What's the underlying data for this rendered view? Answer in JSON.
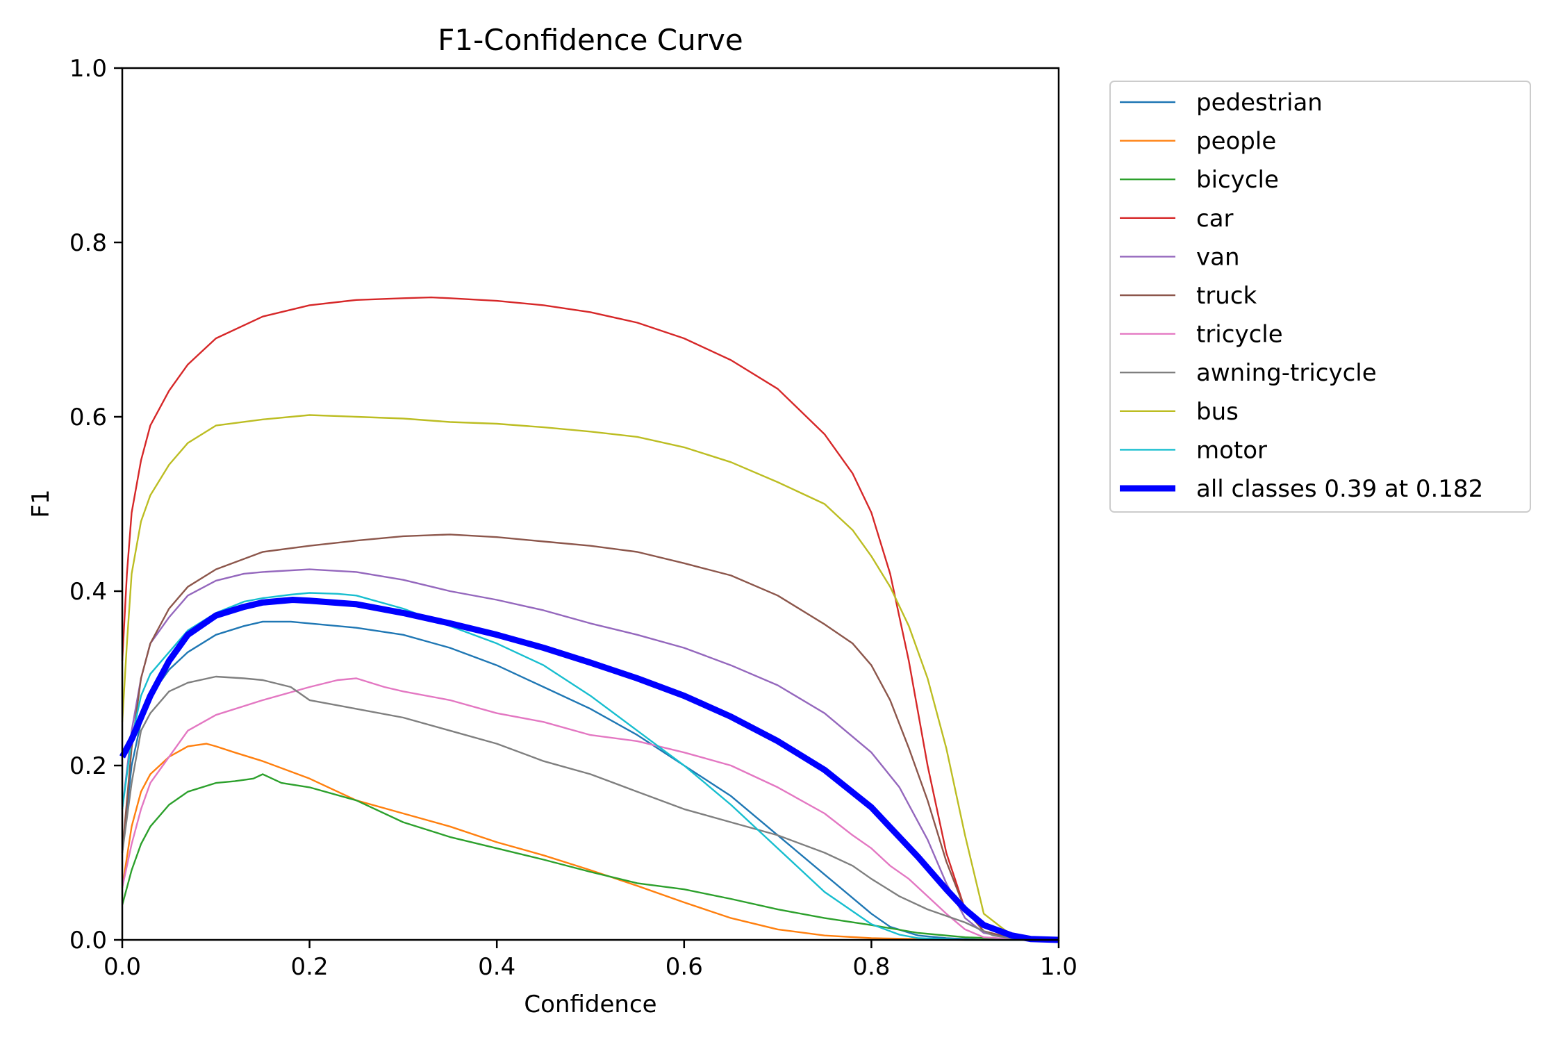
{
  "chart_data": {
    "type": "line",
    "title": "F1-Confidence Curve",
    "xlabel": "Confidence",
    "ylabel": "F1",
    "xlim": [
      0,
      1
    ],
    "ylim": [
      0,
      1
    ],
    "xticks": [
      "0.0",
      "0.2",
      "0.4",
      "0.6",
      "0.8",
      "1.0"
    ],
    "yticks": [
      "0.0",
      "0.2",
      "0.4",
      "0.6",
      "0.8",
      "1.0"
    ],
    "grid": false,
    "legend_position": "outside-upper-right",
    "series": [
      {
        "name": "pedestrian",
        "color": "#1f77b4",
        "x": [
          0,
          0.01,
          0.02,
          0.03,
          0.05,
          0.07,
          0.1,
          0.13,
          0.15,
          0.18,
          0.2,
          0.25,
          0.3,
          0.35,
          0.4,
          0.45,
          0.5,
          0.55,
          0.6,
          0.65,
          0.7,
          0.75,
          0.8,
          0.82,
          0.85,
          0.88,
          0.9,
          0.92,
          0.95,
          1.0
        ],
        "y": [
          0.1,
          0.2,
          0.25,
          0.28,
          0.31,
          0.33,
          0.35,
          0.36,
          0.365,
          0.365,
          0.363,
          0.358,
          0.35,
          0.335,
          0.315,
          0.29,
          0.265,
          0.235,
          0.2,
          0.165,
          0.12,
          0.075,
          0.03,
          0.015,
          0.005,
          0.002,
          0.001,
          0,
          0,
          0
        ]
      },
      {
        "name": "people",
        "color": "#ff7f0e",
        "x": [
          0,
          0.01,
          0.02,
          0.03,
          0.05,
          0.07,
          0.09,
          0.1,
          0.12,
          0.15,
          0.2,
          0.25,
          0.3,
          0.35,
          0.4,
          0.45,
          0.5,
          0.55,
          0.6,
          0.65,
          0.7,
          0.75,
          0.8,
          0.85,
          0.9,
          1.0
        ],
        "y": [
          0.06,
          0.13,
          0.17,
          0.19,
          0.21,
          0.222,
          0.225,
          0.222,
          0.215,
          0.205,
          0.185,
          0.16,
          0.145,
          0.13,
          0.112,
          0.097,
          0.08,
          0.062,
          0.043,
          0.025,
          0.012,
          0.005,
          0.002,
          0.001,
          0,
          0
        ]
      },
      {
        "name": "bicycle",
        "color": "#2ca02c",
        "x": [
          0,
          0.01,
          0.02,
          0.03,
          0.05,
          0.07,
          0.1,
          0.12,
          0.14,
          0.15,
          0.17,
          0.2,
          0.25,
          0.3,
          0.35,
          0.4,
          0.45,
          0.5,
          0.55,
          0.6,
          0.65,
          0.7,
          0.75,
          0.8,
          0.85,
          0.9,
          0.95,
          1.0
        ],
        "y": [
          0.04,
          0.08,
          0.11,
          0.13,
          0.155,
          0.17,
          0.18,
          0.182,
          0.185,
          0.19,
          0.18,
          0.175,
          0.16,
          0.135,
          0.118,
          0.105,
          0.092,
          0.078,
          0.065,
          0.058,
          0.047,
          0.035,
          0.025,
          0.017,
          0.008,
          0.003,
          0.001,
          0
        ]
      },
      {
        "name": "car",
        "color": "#d62728",
        "x": [
          0,
          0.005,
          0.01,
          0.02,
          0.03,
          0.05,
          0.07,
          0.1,
          0.15,
          0.2,
          0.25,
          0.3,
          0.33,
          0.35,
          0.4,
          0.45,
          0.5,
          0.55,
          0.6,
          0.65,
          0.7,
          0.75,
          0.78,
          0.8,
          0.82,
          0.84,
          0.86,
          0.88,
          0.9,
          0.92,
          0.95,
          1.0
        ],
        "y": [
          0.32,
          0.42,
          0.49,
          0.55,
          0.59,
          0.63,
          0.66,
          0.69,
          0.715,
          0.728,
          0.734,
          0.736,
          0.737,
          0.736,
          0.733,
          0.728,
          0.72,
          0.708,
          0.69,
          0.665,
          0.632,
          0.58,
          0.535,
          0.49,
          0.42,
          0.32,
          0.2,
          0.1,
          0.035,
          0.01,
          0.002,
          0
        ]
      },
      {
        "name": "van",
        "color": "#9467bd",
        "x": [
          0,
          0.01,
          0.02,
          0.03,
          0.05,
          0.07,
          0.1,
          0.13,
          0.15,
          0.2,
          0.25,
          0.3,
          0.35,
          0.4,
          0.45,
          0.5,
          0.55,
          0.6,
          0.65,
          0.7,
          0.75,
          0.8,
          0.83,
          0.86,
          0.88,
          0.9,
          0.92,
          0.95,
          1.0
        ],
        "y": [
          0.15,
          0.24,
          0.3,
          0.34,
          0.37,
          0.395,
          0.412,
          0.42,
          0.422,
          0.425,
          0.422,
          0.413,
          0.4,
          0.39,
          0.378,
          0.363,
          0.35,
          0.335,
          0.315,
          0.292,
          0.26,
          0.215,
          0.175,
          0.115,
          0.065,
          0.025,
          0.008,
          0.002,
          0
        ]
      },
      {
        "name": "truck",
        "color": "#8c564b",
        "x": [
          0,
          0.01,
          0.02,
          0.03,
          0.05,
          0.07,
          0.1,
          0.15,
          0.2,
          0.25,
          0.3,
          0.35,
          0.4,
          0.45,
          0.5,
          0.55,
          0.6,
          0.65,
          0.7,
          0.75,
          0.78,
          0.8,
          0.82,
          0.84,
          0.86,
          0.88,
          0.9,
          0.92,
          0.95,
          1.0
        ],
        "y": [
          0.1,
          0.22,
          0.3,
          0.34,
          0.38,
          0.405,
          0.425,
          0.445,
          0.452,
          0.458,
          0.463,
          0.465,
          0.462,
          0.457,
          0.452,
          0.445,
          0.432,
          0.418,
          0.395,
          0.362,
          0.34,
          0.315,
          0.275,
          0.22,
          0.16,
          0.09,
          0.035,
          0.01,
          0.002,
          0
        ]
      },
      {
        "name": "tricycle",
        "color": "#e377c2",
        "x": [
          0,
          0.01,
          0.02,
          0.03,
          0.05,
          0.07,
          0.1,
          0.15,
          0.2,
          0.23,
          0.25,
          0.28,
          0.3,
          0.35,
          0.4,
          0.45,
          0.5,
          0.55,
          0.6,
          0.65,
          0.7,
          0.75,
          0.78,
          0.8,
          0.82,
          0.84,
          0.86,
          0.88,
          0.9,
          0.92,
          0.95,
          1.0
        ],
        "y": [
          0.06,
          0.11,
          0.15,
          0.18,
          0.21,
          0.24,
          0.258,
          0.275,
          0.29,
          0.298,
          0.3,
          0.29,
          0.285,
          0.275,
          0.26,
          0.25,
          0.235,
          0.228,
          0.215,
          0.2,
          0.175,
          0.145,
          0.12,
          0.105,
          0.085,
          0.07,
          0.05,
          0.03,
          0.012,
          0.003,
          0.001,
          0
        ]
      },
      {
        "name": "awning-tricycle",
        "color": "#7f7f7f",
        "x": [
          0,
          0.01,
          0.02,
          0.03,
          0.05,
          0.07,
          0.1,
          0.13,
          0.15,
          0.18,
          0.2,
          0.25,
          0.3,
          0.35,
          0.4,
          0.45,
          0.5,
          0.55,
          0.6,
          0.65,
          0.7,
          0.75,
          0.78,
          0.8,
          0.83,
          0.86,
          0.9,
          0.93,
          0.95,
          1.0
        ],
        "y": [
          0.1,
          0.18,
          0.24,
          0.26,
          0.285,
          0.295,
          0.302,
          0.3,
          0.298,
          0.29,
          0.275,
          0.265,
          0.255,
          0.24,
          0.225,
          0.205,
          0.19,
          0.17,
          0.15,
          0.135,
          0.12,
          0.1,
          0.085,
          0.07,
          0.05,
          0.035,
          0.02,
          0.005,
          0.002,
          0
        ]
      },
      {
        "name": "bus",
        "color": "#bcbd22",
        "x": [
          0,
          0.005,
          0.01,
          0.02,
          0.03,
          0.05,
          0.07,
          0.1,
          0.15,
          0.2,
          0.25,
          0.3,
          0.35,
          0.4,
          0.45,
          0.5,
          0.55,
          0.6,
          0.65,
          0.7,
          0.75,
          0.78,
          0.8,
          0.82,
          0.84,
          0.86,
          0.88,
          0.9,
          0.92,
          0.95,
          1.0
        ],
        "y": [
          0.25,
          0.34,
          0.42,
          0.48,
          0.51,
          0.545,
          0.57,
          0.59,
          0.597,
          0.602,
          0.6,
          0.598,
          0.594,
          0.592,
          0.588,
          0.583,
          0.577,
          0.565,
          0.548,
          0.525,
          0.5,
          0.47,
          0.44,
          0.405,
          0.36,
          0.3,
          0.22,
          0.12,
          0.03,
          0.005,
          0
        ]
      },
      {
        "name": "motor",
        "color": "#17becf",
        "x": [
          0,
          0.01,
          0.02,
          0.03,
          0.05,
          0.07,
          0.1,
          0.13,
          0.15,
          0.18,
          0.2,
          0.23,
          0.25,
          0.3,
          0.35,
          0.4,
          0.45,
          0.5,
          0.55,
          0.6,
          0.65,
          0.7,
          0.75,
          0.8,
          0.83,
          0.85,
          0.88,
          0.9,
          0.95,
          1.0
        ],
        "y": [
          0.15,
          0.23,
          0.28,
          0.305,
          0.33,
          0.355,
          0.375,
          0.388,
          0.392,
          0.396,
          0.398,
          0.397,
          0.395,
          0.38,
          0.36,
          0.34,
          0.315,
          0.28,
          0.24,
          0.2,
          0.155,
          0.105,
          0.055,
          0.018,
          0.006,
          0.002,
          0.001,
          0,
          0,
          0
        ]
      },
      {
        "name": "all classes 0.39 at 0.182",
        "color": "#0000ff",
        "thick": true,
        "x": [
          0,
          0.01,
          0.02,
          0.03,
          0.05,
          0.07,
          0.1,
          0.13,
          0.15,
          0.182,
          0.2,
          0.25,
          0.3,
          0.35,
          0.4,
          0.45,
          0.5,
          0.55,
          0.6,
          0.65,
          0.7,
          0.75,
          0.8,
          0.85,
          0.88,
          0.9,
          0.92,
          0.95,
          0.97,
          1.0
        ],
        "y": [
          0.21,
          0.23,
          0.255,
          0.28,
          0.32,
          0.35,
          0.372,
          0.382,
          0.387,
          0.39,
          0.389,
          0.385,
          0.375,
          0.363,
          0.35,
          0.335,
          0.318,
          0.3,
          0.28,
          0.256,
          0.228,
          0.195,
          0.152,
          0.095,
          0.058,
          0.035,
          0.017,
          0.005,
          0.001,
          0
        ]
      }
    ]
  }
}
